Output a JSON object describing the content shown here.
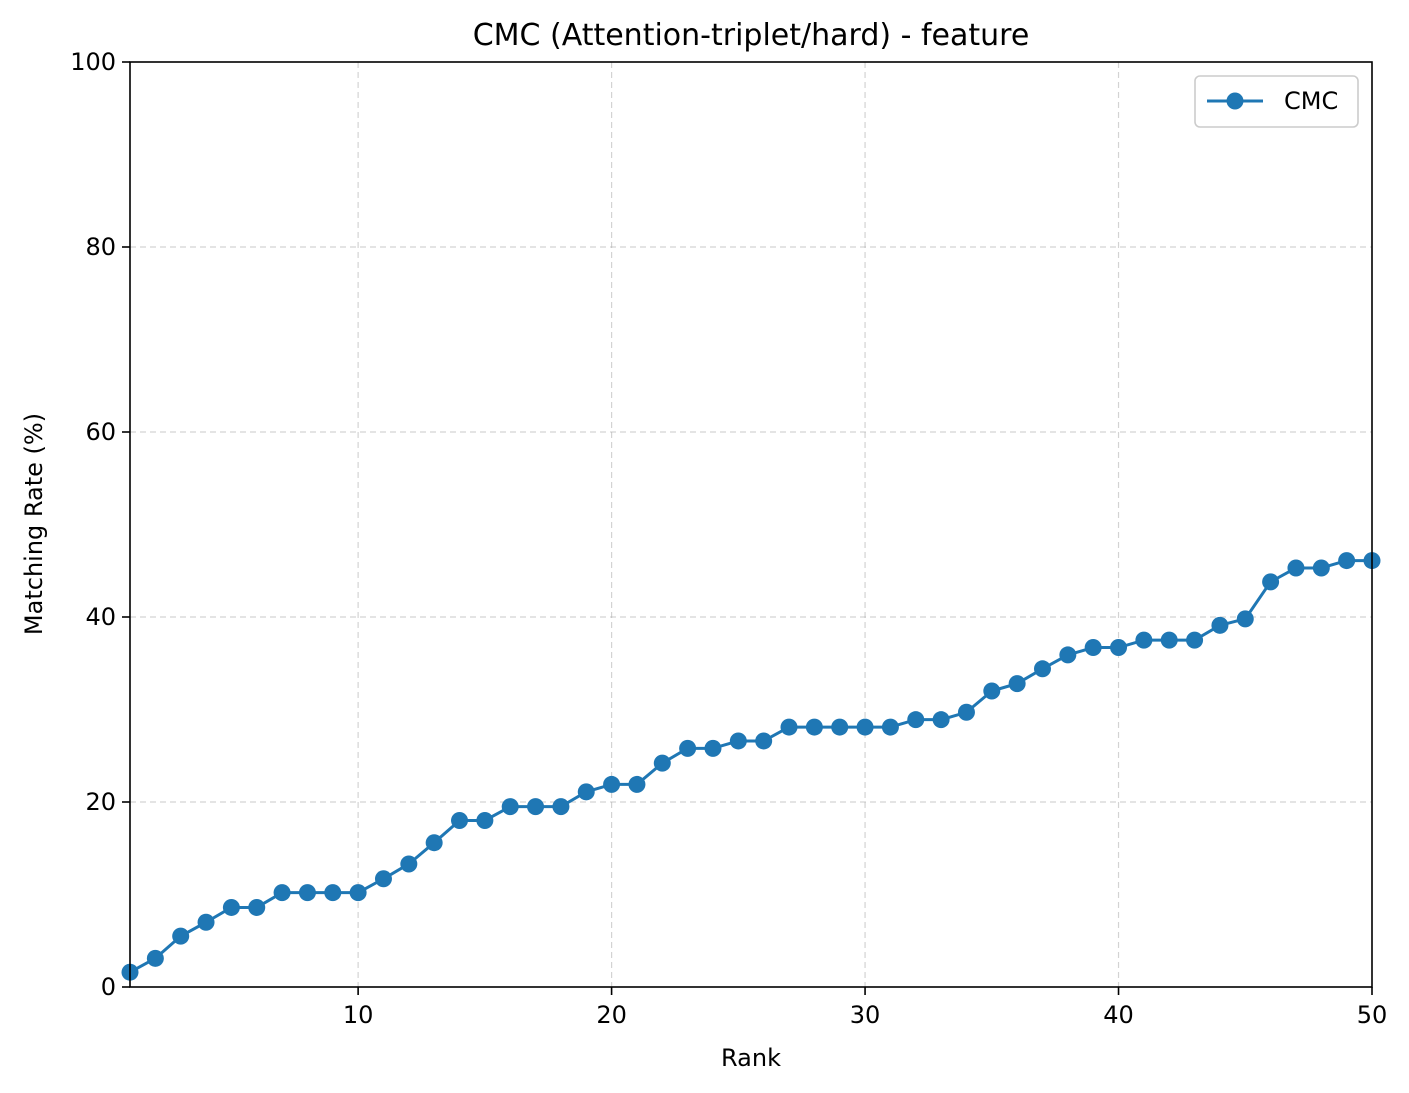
{
  "colors": {
    "series": "#1f77b4",
    "axes": "#000000",
    "grid": "#b0b0b0",
    "background": "#ffffff",
    "legend_border": "#cccccc"
  },
  "chart_data": {
    "type": "line",
    "title": "CMC (Attention-triplet/hard) - feature",
    "xlabel": "Rank",
    "ylabel": "Matching Rate (%)",
    "xlim": [
      1,
      50
    ],
    "ylim": [
      0,
      100
    ],
    "xticks": [
      10,
      20,
      30,
      40,
      50
    ],
    "yticks": [
      0,
      20,
      40,
      60,
      80,
      100
    ],
    "grid": true,
    "legend_position": "top-right",
    "markers": "circle",
    "x": [
      1,
      2,
      3,
      4,
      5,
      6,
      7,
      8,
      9,
      10,
      11,
      12,
      13,
      14,
      15,
      16,
      17,
      18,
      19,
      20,
      21,
      22,
      23,
      24,
      25,
      26,
      27,
      28,
      29,
      30,
      31,
      32,
      33,
      34,
      35,
      36,
      37,
      38,
      39,
      40,
      41,
      42,
      43,
      44,
      45,
      46,
      47,
      48,
      49,
      50
    ],
    "series": [
      {
        "name": "CMC",
        "color": "#1f77b4",
        "values": [
          1.6,
          3.1,
          5.5,
          7.0,
          8.6,
          8.6,
          10.2,
          10.2,
          10.2,
          10.2,
          11.7,
          13.3,
          15.6,
          18.0,
          18.0,
          19.5,
          19.5,
          19.5,
          21.1,
          21.9,
          21.9,
          24.2,
          25.8,
          25.8,
          26.6,
          26.6,
          28.1,
          28.1,
          28.1,
          28.1,
          28.1,
          28.9,
          28.9,
          29.7,
          32.0,
          32.8,
          34.4,
          35.9,
          36.7,
          36.7,
          37.5,
          37.5,
          37.5,
          39.1,
          39.8,
          43.8,
          45.3,
          45.3,
          46.1,
          46.1
        ]
      }
    ]
  }
}
